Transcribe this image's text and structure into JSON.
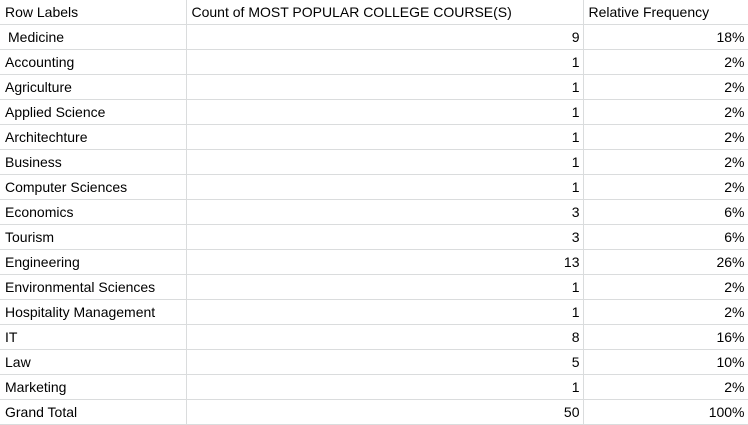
{
  "headers": {
    "row_labels": "Row Labels",
    "count": "Count of MOST POPULAR COLLEGE COURSE(S)",
    "relative_frequency": "Relative Frequency"
  },
  "rows": [
    {
      "label": "Medicine",
      "count": "9",
      "freq": "18%"
    },
    {
      "label": "Accounting",
      "count": "1",
      "freq": "2%"
    },
    {
      "label": "Agriculture",
      "count": "1",
      "freq": "2%"
    },
    {
      "label": "Applied Science",
      "count": "1",
      "freq": "2%"
    },
    {
      "label": "Architechture",
      "count": "1",
      "freq": "2%"
    },
    {
      "label": "Business",
      "count": "1",
      "freq": "2%"
    },
    {
      "label": "Computer Sciences",
      "count": "1",
      "freq": "2%"
    },
    {
      "label": "Economics",
      "count": "3",
      "freq": "6%"
    },
    {
      "label": "Tourism",
      "count": "3",
      "freq": "6%"
    },
    {
      "label": "Engineering",
      "count": "13",
      "freq": "26%"
    },
    {
      "label": "Environmental Sciences",
      "count": "1",
      "freq": "2%"
    },
    {
      "label": "Hospitality Management",
      "count": "1",
      "freq": "2%"
    },
    {
      "label": "IT",
      "count": "8",
      "freq": "16%"
    },
    {
      "label": "Law",
      "count": "5",
      "freq": "10%"
    },
    {
      "label": "Marketing",
      "count": "1",
      "freq": "2%"
    }
  ],
  "grand_total": {
    "label": "Grand Total",
    "count": "50",
    "freq": "100%"
  }
}
